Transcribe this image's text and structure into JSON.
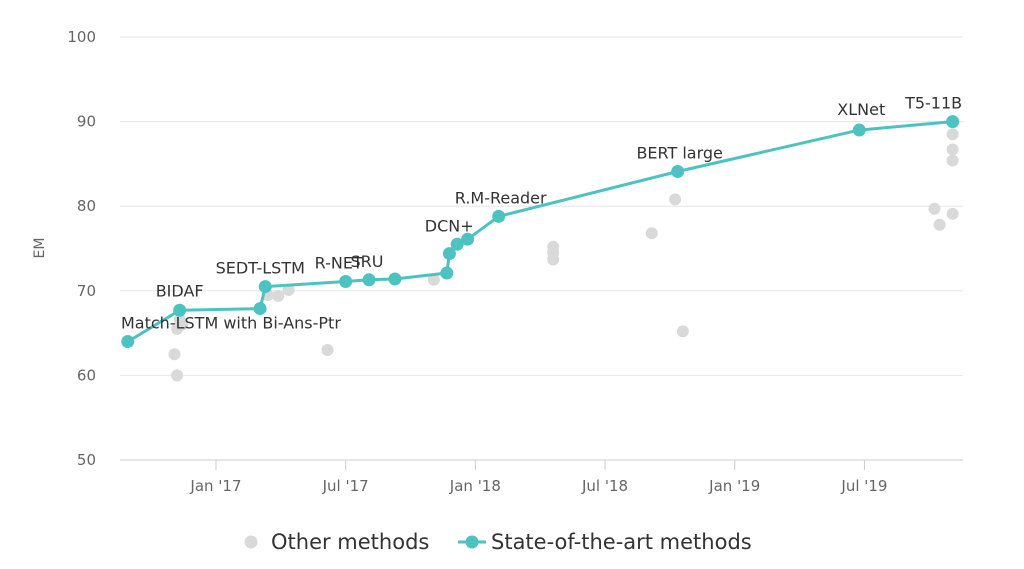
{
  "chart_data": {
    "type": "scatter",
    "title": "",
    "xlabel": "",
    "ylabel": "EM",
    "ylim": [
      50,
      100
    ],
    "xlim": [
      2016.63,
      2019.88
    ],
    "grid": true,
    "y_ticks": [
      50,
      60,
      70,
      80,
      90,
      100
    ],
    "x_ticks": [
      {
        "label": "Jan '17",
        "x": 2017.0
      },
      {
        "label": "Jul '17",
        "x": 2017.5
      },
      {
        "label": "Jan '18",
        "x": 2018.0
      },
      {
        "label": "Jul '18",
        "x": 2018.5
      },
      {
        "label": "Jan '19",
        "x": 2019.0
      },
      {
        "label": "Jul '19",
        "x": 2019.5
      }
    ],
    "legend": {
      "placement": "bottom-center",
      "entries": [
        "Other methods",
        "State-of-the-art methods"
      ]
    },
    "series": [
      {
        "name": "Other methods",
        "color": "#d9d9d9",
        "points": [
          {
            "x": 2016.84,
            "y": 62.5
          },
          {
            "x": 2016.85,
            "y": 60.0
          },
          {
            "x": 2016.85,
            "y": 65.5
          },
          {
            "x": 2016.86,
            "y": 66.6
          },
          {
            "x": 2016.87,
            "y": 66.0
          },
          {
            "x": 2017.2,
            "y": 69.5
          },
          {
            "x": 2017.24,
            "y": 69.4
          },
          {
            "x": 2017.28,
            "y": 70.1
          },
          {
            "x": 2017.43,
            "y": 63.0
          },
          {
            "x": 2017.84,
            "y": 71.3
          },
          {
            "x": 2018.3,
            "y": 75.2
          },
          {
            "x": 2018.3,
            "y": 74.5
          },
          {
            "x": 2018.3,
            "y": 73.7
          },
          {
            "x": 2018.68,
            "y": 76.8
          },
          {
            "x": 2018.77,
            "y": 80.8
          },
          {
            "x": 2018.8,
            "y": 65.2
          },
          {
            "x": 2019.77,
            "y": 79.7
          },
          {
            "x": 2019.79,
            "y": 77.8
          },
          {
            "x": 2019.84,
            "y": 79.1
          },
          {
            "x": 2019.84,
            "y": 85.4
          },
          {
            "x": 2019.84,
            "y": 86.7
          },
          {
            "x": 2019.84,
            "y": 88.5
          }
        ]
      },
      {
        "name": "State-of-the-art methods",
        "color": "#4cc3c0",
        "points": [
          {
            "x": 2016.66,
            "y": 64.0,
            "label": "Match-LSTM with Bi-Ans-Ptr"
          },
          {
            "x": 2016.86,
            "y": 67.7,
            "label": "BIDAF"
          },
          {
            "x": 2017.17,
            "y": 67.9
          },
          {
            "x": 2017.19,
            "y": 70.5,
            "label": "SEDT-LSTM"
          },
          {
            "x": 2017.5,
            "y": 71.1,
            "label": "R-NET"
          },
          {
            "x": 2017.59,
            "y": 71.3,
            "label": "SRU"
          },
          {
            "x": 2017.69,
            "y": 71.4
          },
          {
            "x": 2017.89,
            "y": 72.1
          },
          {
            "x": 2017.9,
            "y": 74.4
          },
          {
            "x": 2017.93,
            "y": 75.5,
            "label": "DCN+"
          },
          {
            "x": 2017.97,
            "y": 76.1
          },
          {
            "x": 2018.09,
            "y": 78.8,
            "label": "R.M-Reader"
          },
          {
            "x": 2018.78,
            "y": 84.1,
            "label": "BERT large"
          },
          {
            "x": 2019.48,
            "y": 89.0,
            "label": "XLNet"
          },
          {
            "x": 2019.84,
            "y": 90.0,
            "label": "T5-11B"
          }
        ]
      }
    ]
  }
}
